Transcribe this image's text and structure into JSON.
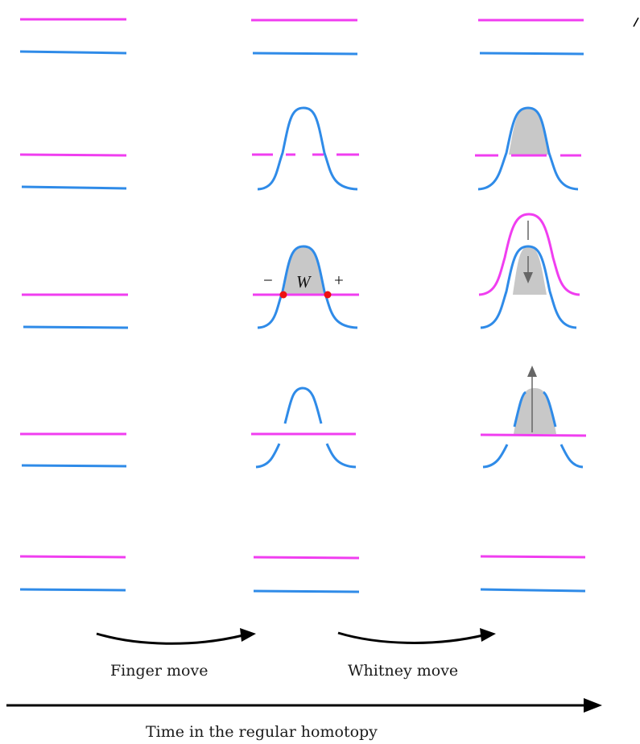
{
  "colors": {
    "magenta": "#f03ef0",
    "blue": "#2f8be8",
    "shade": "#c8c8c8",
    "arrow_gray": "#666666",
    "point_red": "#ee1111",
    "ink": "#000000"
  },
  "labels": {
    "finger_move": "Finger move",
    "whitney_move": "Whitney move",
    "time_axis": "Time in the regular homotopy",
    "whitney_disk": "W",
    "minus_sign": "−",
    "plus_sign": "+"
  }
}
